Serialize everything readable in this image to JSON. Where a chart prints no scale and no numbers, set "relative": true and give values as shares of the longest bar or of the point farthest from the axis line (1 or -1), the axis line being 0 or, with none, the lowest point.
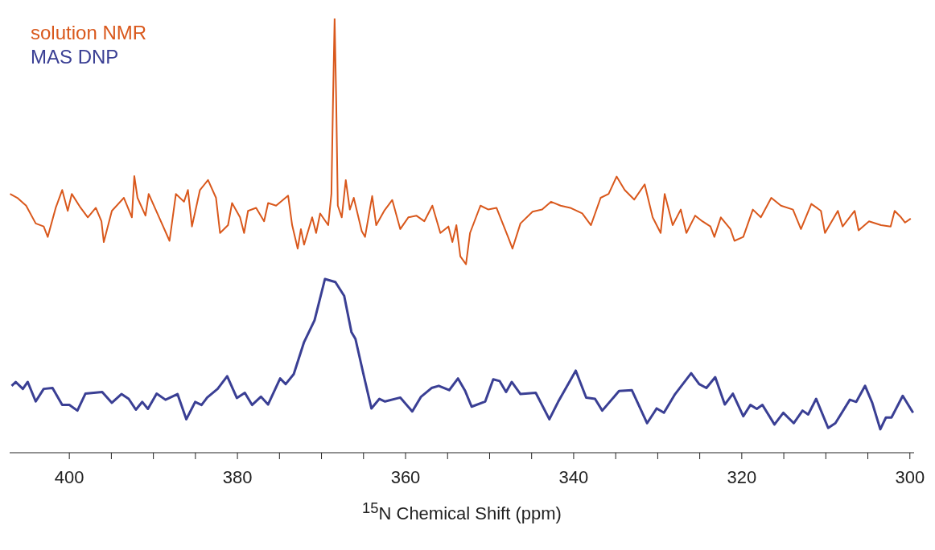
{
  "chart_data": {
    "type": "line",
    "relative": true,
    "xlabel": "$^{15}$N Chemical Shift (ppm)",
    "xlim": [
      407.1,
      299.5
    ],
    "xticks": [
      400,
      {
        "value": 395,
        "label": null
      },
      {
        "value": 390,
        "label": null
      },
      {
        "value": 385,
        "label": null
      },
      380,
      {
        "value": 375,
        "label": null
      },
      {
        "value": 370,
        "label": null
      },
      {
        "value": 365,
        "label": null
      },
      360,
      {
        "value": 355,
        "label": null
      },
      {
        "value": 350,
        "label": null
      },
      {
        "value": 345,
        "label": null
      },
      340,
      {
        "value": 335,
        "label": null
      },
      {
        "value": 330,
        "label": null
      },
      {
        "value": 325,
        "label": null
      },
      320,
      {
        "value": 315,
        "label": null
      },
      {
        "value": 310,
        "label": null
      },
      {
        "value": 305,
        "label": null
      },
      300
    ],
    "legend": "top left",
    "marker": "none",
    "line_style": "solid",
    "grid": false,
    "series": [
      {
        "name": "solution NMR",
        "color": "#d9581c",
        "x": [
          407.05,
          406.19,
          405.14,
          404.0,
          403.05,
          402.57,
          401.62,
          400.85,
          400.19,
          399.71,
          398.76,
          397.8,
          396.85,
          396.18,
          395.9,
          394.94,
          393.51,
          392.56,
          392.27,
          391.89,
          390.94,
          390.56,
          389.41,
          388.08,
          387.32,
          386.36,
          385.89,
          385.41,
          384.46,
          383.5,
          382.55,
          382.07,
          381.12,
          380.64,
          379.69,
          379.21,
          378.74,
          377.78,
          376.83,
          376.35,
          375.4,
          373.97,
          373.49,
          372.83,
          372.45,
          372.07,
          371.11,
          370.64,
          370.16,
          369.2,
          368.82,
          368.63,
          368.44,
          368.25,
          368.06,
          367.59,
          367.11,
          366.63,
          366.16,
          365.21,
          364.82,
          363.97,
          363.49,
          362.54,
          361.58,
          360.63,
          359.67,
          358.72,
          357.77,
          356.81,
          355.86,
          354.9,
          354.43,
          353.95,
          353.48,
          352.81,
          352.33,
          351.09,
          350.14,
          349.18,
          347.75,
          347.28,
          346.33,
          344.89,
          343.75,
          342.7,
          341.56,
          340.41,
          338.98,
          337.94,
          336.79,
          335.84,
          334.89,
          333.93,
          332.79,
          331.55,
          330.6,
          329.65,
          329.17,
          328.22,
          327.26,
          326.59,
          325.54,
          324.69,
          323.73,
          323.26,
          322.49,
          321.35,
          320.87,
          319.82,
          318.68,
          317.73,
          316.49,
          315.34,
          313.91,
          312.96,
          311.72,
          310.58,
          310.1,
          308.57,
          308.0,
          306.57,
          306.1,
          304.86,
          303.43,
          302.29,
          301.81,
          301.05,
          300.57,
          299.9
        ],
        "values": [
          0.596,
          0.587,
          0.569,
          0.528,
          0.521,
          0.497,
          0.564,
          0.605,
          0.557,
          0.596,
          0.567,
          0.542,
          0.564,
          0.533,
          0.485,
          0.557,
          0.587,
          0.542,
          0.637,
          0.587,
          0.546,
          0.596,
          0.546,
          0.488,
          0.596,
          0.578,
          0.605,
          0.521,
          0.605,
          0.628,
          0.587,
          0.506,
          0.524,
          0.575,
          0.542,
          0.506,
          0.557,
          0.564,
          0.533,
          0.575,
          0.569,
          0.592,
          0.524,
          0.47,
          0.515,
          0.479,
          0.542,
          0.506,
          0.551,
          0.524,
          0.596,
          0.811,
          1,
          0.811,
          0.569,
          0.542,
          0.628,
          0.56,
          0.587,
          0.51,
          0.497,
          0.591,
          0.524,
          0.557,
          0.582,
          0.515,
          0.542,
          0.546,
          0.533,
          0.569,
          0.506,
          0.521,
          0.485,
          0.524,
          0.452,
          0.434,
          0.506,
          0.569,
          0.56,
          0.564,
          0.494,
          0.47,
          0.528,
          0.555,
          0.56,
          0.578,
          0.569,
          0.564,
          0.551,
          0.524,
          0.587,
          0.596,
          0.636,
          0.605,
          0.583,
          0.618,
          0.542,
          0.506,
          0.596,
          0.524,
          0.56,
          0.506,
          0.546,
          0.533,
          0.521,
          0.497,
          0.542,
          0.515,
          0.488,
          0.497,
          0.56,
          0.542,
          0.587,
          0.569,
          0.56,
          0.515,
          0.573,
          0.557,
          0.506,
          0.557,
          0.521,
          0.557,
          0.512,
          0.533,
          0.524,
          0.521,
          0.557,
          0.542,
          0.53,
          0.539
        ]
      },
      {
        "name": "MAS DNP",
        "color": "#3a3f94",
        "x": [
          406.86,
          406.38,
          405.53,
          404.95,
          404.0,
          403.05,
          402.0,
          400.85,
          400.0,
          399.04,
          398.09,
          396.09,
          394.94,
          393.8,
          392.94,
          392.08,
          391.32,
          390.65,
          389.61,
          388.56,
          387.13,
          386.08,
          385.03,
          384.27,
          383.6,
          382.36,
          381.22,
          380.07,
          379.12,
          378.26,
          377.21,
          376.36,
          374.92,
          374.26,
          373.3,
          372.07,
          370.83,
          369.59,
          368.35,
          367.3,
          366.44,
          365.96,
          365.01,
          364.06,
          363.11,
          362.44,
          360.62,
          359.2,
          358.15,
          356.91,
          356.05,
          354.81,
          353.76,
          352.9,
          352.14,
          350.52,
          349.57,
          348.8,
          348.04,
          347.37,
          346.33,
          344.51,
          342.89,
          341.85,
          339.75,
          338.51,
          337.46,
          336.6,
          334.6,
          333.08,
          331.26,
          330.12,
          329.26,
          327.93,
          326.02,
          325.07,
          324.21,
          323.16,
          322.02,
          321.06,
          319.82,
          318.97,
          318.21,
          317.54,
          316.11,
          315.06,
          313.82,
          312.77,
          312.1,
          311.15,
          309.72,
          308.86,
          307.14,
          306.38,
          305.33,
          304.48,
          303.52,
          302.85,
          302.19,
          300.85,
          299.62
        ],
        "values": [
          0.154,
          0.163,
          0.147,
          0.163,
          0.118,
          0.147,
          0.149,
          0.11,
          0.11,
          0.097,
          0.136,
          0.14,
          0.115,
          0.135,
          0.124,
          0.099,
          0.117,
          0.101,
          0.136,
          0.122,
          0.135,
          0.077,
          0.117,
          0.11,
          0.127,
          0.147,
          0.176,
          0.126,
          0.138,
          0.11,
          0.129,
          0.111,
          0.171,
          0.158,
          0.181,
          0.255,
          0.305,
          0.4,
          0.393,
          0.361,
          0.278,
          0.262,
          0.181,
          0.102,
          0.124,
          0.118,
          0.127,
          0.095,
          0.129,
          0.149,
          0.154,
          0.144,
          0.171,
          0.142,
          0.106,
          0.118,
          0.169,
          0.165,
          0.14,
          0.163,
          0.135,
          0.138,
          0.077,
          0.117,
          0.189,
          0.127,
          0.124,
          0.097,
          0.142,
          0.144,
          0.068,
          0.102,
          0.092,
          0.135,
          0.183,
          0.158,
          0.149,
          0.174,
          0.111,
          0.136,
          0.084,
          0.11,
          0.101,
          0.11,
          0.065,
          0.092,
          0.068,
          0.097,
          0.088,
          0.124,
          0.057,
          0.068,
          0.122,
          0.117,
          0.154,
          0.115,
          0.054,
          0.081,
          0.081,
          0.131,
          0.092
        ]
      }
    ]
  }
}
